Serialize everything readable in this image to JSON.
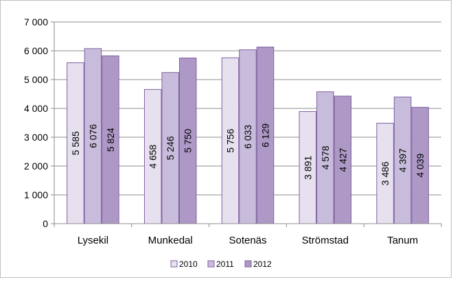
{
  "chart_data": {
    "type": "bar",
    "categories": [
      "Lysekil",
      "Munkedal",
      "Sotenäs",
      "Strömstad",
      "Tanum"
    ],
    "series": [
      {
        "name": "2010",
        "values": [
          5585,
          4658,
          5756,
          3891,
          3486
        ],
        "labels": [
          "5 585",
          "4 658",
          "5 756",
          "3 891",
          "3 486"
        ]
      },
      {
        "name": "2011",
        "values": [
          6076,
          5246,
          6033,
          4578,
          4397
        ],
        "labels": [
          "6 076",
          "5 246",
          "6 033",
          "4 578",
          "4 397"
        ]
      },
      {
        "name": "2012",
        "values": [
          5824,
          5750,
          6129,
          4427,
          4039
        ],
        "labels": [
          "5 824",
          "5 750",
          "6 129",
          "4 427",
          "4 039"
        ]
      }
    ],
    "y_ticks": [
      {
        "value": 0,
        "label": "0"
      },
      {
        "value": 1000,
        "label": "1 000"
      },
      {
        "value": 2000,
        "label": "2 000"
      },
      {
        "value": 3000,
        "label": "3 000"
      },
      {
        "value": 4000,
        "label": "4 000"
      },
      {
        "value": 5000,
        "label": "5 000"
      },
      {
        "value": 6000,
        "label": "6 000"
      },
      {
        "value": 7000,
        "label": "7 000"
      }
    ],
    "ylim": [
      0,
      7000
    ],
    "grid": true,
    "legend_position": "bottom",
    "colors": [
      "#e6e0ef",
      "#c8bcdc",
      "#ae98c6"
    ],
    "border_color": "#7f5f9f",
    "title": "",
    "xlabel": "",
    "ylabel": ""
  }
}
